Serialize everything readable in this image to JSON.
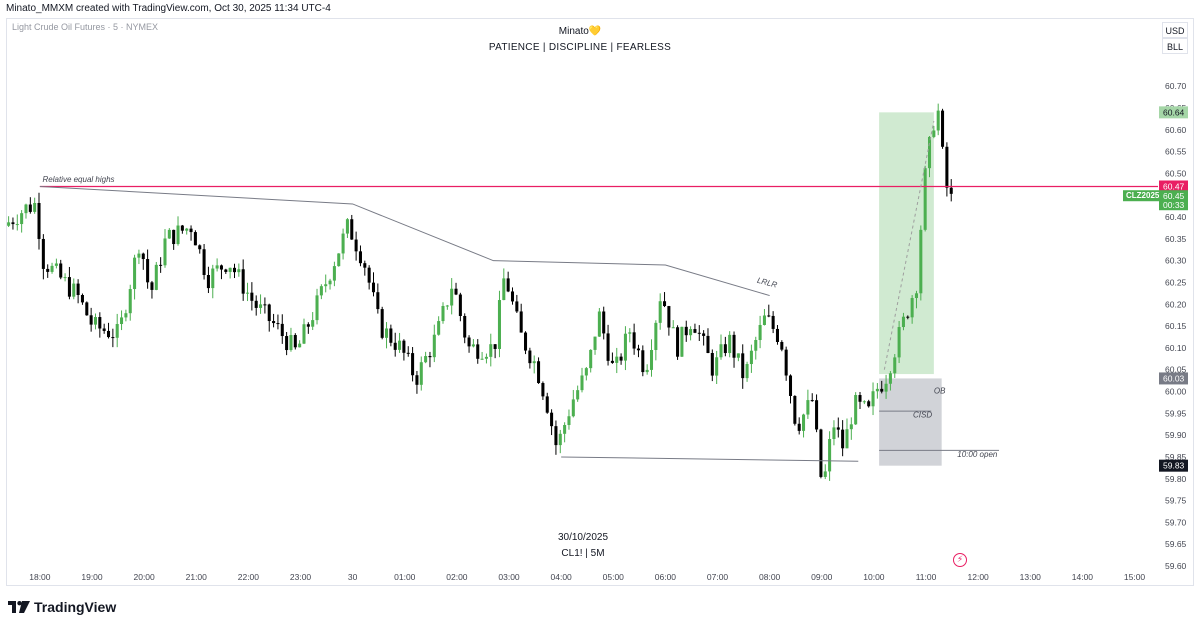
{
  "header": {
    "attribution": "Minato_MMXM created with TradingView.com, Oct 30, 2025 11:34 UTC-4",
    "symbol_info": "Light Crude Oil Futures · 5 · NYMEX"
  },
  "watermark": {
    "title": "Minato💛",
    "subtitle": "PATIENCE  |  DISCIPLINE  |  FEARLESS",
    "date": "30/10/2025",
    "timeframe": "CL1!  |  5M"
  },
  "currency_buttons": {
    "usd": "USD",
    "unit": "BLL"
  },
  "branding": {
    "name": "TradingView"
  },
  "colors": {
    "up": "#4caf50",
    "down": "#000000",
    "liquidity_line": "#e91e63",
    "target_zone": "#c8e6c9",
    "ob_zone": "#b2b5be",
    "trendline": "#787b86"
  },
  "chart_data": {
    "type": "candlestick",
    "symbol": "CLZ2025",
    "title": "Light Crude Oil Futures · 5 · NYMEX",
    "ylim": [
      59.6,
      60.76
    ],
    "y_ticks": [
      60.7,
      60.65,
      60.6,
      60.55,
      60.5,
      60.45,
      60.4,
      60.35,
      60.3,
      60.25,
      60.2,
      60.15,
      60.1,
      60.05,
      60.0,
      59.95,
      59.9,
      59.85,
      59.8,
      59.75,
      59.7,
      59.65,
      59.6
    ],
    "x_ticks": [
      "18:00",
      "19:00",
      "20:00",
      "21:00",
      "22:00",
      "23:00",
      "30",
      "01:00",
      "02:00",
      "03:00",
      "04:00",
      "05:00",
      "06:00",
      "07:00",
      "08:00",
      "09:00",
      "10:00",
      "11:00",
      "12:00",
      "13:00",
      "14:00",
      "15:00"
    ],
    "x_tick_hours": [
      0,
      1,
      2,
      3,
      4,
      5,
      6,
      7,
      8,
      9,
      10,
      11,
      12,
      13,
      14,
      15,
      16,
      17,
      18,
      19,
      20,
      21
    ],
    "x_range_hours": [
      -0.65,
      21.45
    ],
    "candle_hours": [
      -0.6,
      17.55
    ],
    "anchors": [
      [
        -0.6,
        60.38
      ],
      [
        -0.2,
        60.42
      ],
      [
        0,
        60.43
      ],
      [
        0.15,
        60.3
      ],
      [
        0.8,
        60.22
      ],
      [
        1.1,
        60.15
      ],
      [
        1.6,
        60.13
      ],
      [
        2.0,
        60.35
      ],
      [
        2.2,
        60.22
      ],
      [
        2.5,
        60.35
      ],
      [
        3.0,
        60.38
      ],
      [
        3.3,
        60.26
      ],
      [
        3.7,
        60.3
      ],
      [
        4.2,
        60.2
      ],
      [
        4.6,
        60.15
      ],
      [
        5.0,
        60.09
      ],
      [
        5.4,
        60.2
      ],
      [
        5.6,
        60.26
      ],
      [
        6.0,
        60.38
      ],
      [
        6.3,
        60.3
      ],
      [
        6.6,
        60.15
      ],
      [
        7.0,
        60.1
      ],
      [
        7.3,
        60.03
      ],
      [
        7.7,
        60.13
      ],
      [
        8.0,
        60.25
      ],
      [
        8.3,
        60.1
      ],
      [
        8.8,
        60.1
      ],
      [
        9.0,
        60.27
      ],
      [
        9.3,
        60.13
      ],
      [
        9.6,
        60.06
      ],
      [
        9.8,
        59.98
      ],
      [
        10.0,
        59.87
      ],
      [
        10.3,
        59.98
      ],
      [
        10.6,
        60.05
      ],
      [
        10.8,
        60.18
      ],
      [
        11.1,
        60.04
      ],
      [
        11.4,
        60.14
      ],
      [
        11.7,
        60.05
      ],
      [
        12.0,
        60.23
      ],
      [
        12.3,
        60.1
      ],
      [
        12.6,
        60.17
      ],
      [
        13.0,
        60.05
      ],
      [
        13.3,
        60.12
      ],
      [
        13.6,
        60.03
      ],
      [
        13.8,
        60.11
      ],
      [
        14.0,
        60.17
      ],
      [
        14.3,
        60.12
      ],
      [
        14.6,
        59.92
      ],
      [
        14.9,
        59.98
      ],
      [
        15.1,
        59.77
      ],
      [
        15.3,
        59.93
      ],
      [
        15.5,
        59.87
      ],
      [
        15.7,
        59.97
      ],
      [
        16.0,
        59.95
      ],
      [
        16.1,
        60.0
      ],
      [
        16.3,
        60.03
      ],
      [
        16.6,
        60.14
      ],
      [
        16.9,
        60.25
      ],
      [
        17.05,
        60.48
      ],
      [
        17.2,
        60.6
      ],
      [
        17.3,
        60.66
      ],
      [
        17.45,
        60.48
      ],
      [
        17.55,
        60.44
      ]
    ],
    "last_price": 60.45,
    "countdown": "00:33",
    "price_labels": [
      {
        "text": "60.64",
        "value": 60.64,
        "kind": "target"
      },
      {
        "text": "60.47",
        "value": 60.47,
        "kind": "liquidity"
      },
      {
        "text": "60.03",
        "value": 60.03,
        "kind": "ob"
      },
      {
        "text": "59.83",
        "value": 59.83,
        "kind": "low"
      }
    ],
    "levels": [
      {
        "name": "relative-equal-highs",
        "value": 60.47,
        "x_start": 0,
        "x_end": 21.45
      }
    ],
    "trendlines": [
      {
        "name": "descending-highs",
        "points": [
          [
            0,
            60.47
          ],
          [
            6.0,
            60.43
          ],
          [
            8.7,
            60.3
          ],
          [
            12.0,
            60.29
          ],
          [
            14.0,
            60.22
          ]
        ]
      },
      {
        "name": "equal-lows",
        "points": [
          [
            10.0,
            59.85
          ],
          [
            15.7,
            59.84
          ]
        ]
      }
    ],
    "zones": [
      {
        "name": "target-zone",
        "x0": 16.1,
        "x1": 17.15,
        "y0": 60.04,
        "y1": 60.64
      },
      {
        "name": "ob-zone",
        "x0": 16.1,
        "x1": 17.3,
        "y0": 59.83,
        "y1": 60.03
      }
    ],
    "rays": [
      {
        "name": "cisd-line",
        "x0": 16.1,
        "x1": 17.1,
        "value": 59.955
      },
      {
        "name": "ten-open-line",
        "x0": 16.1,
        "x1": 18.4,
        "value": 59.865
      }
    ],
    "annotations": [
      {
        "name": "relative-equal-highs-label",
        "text": "Relative equal highs",
        "x": 0.05,
        "value": 60.48
      },
      {
        "name": "lrlr-label",
        "text": "LRLR",
        "x": 13.75,
        "value": 60.25
      },
      {
        "name": "ob-label",
        "text": "OB",
        "x": 17.15,
        "value": 59.995
      },
      {
        "name": "cisd-label",
        "text": "CISD",
        "x": 16.75,
        "value": 59.94
      },
      {
        "name": "ten-open-label",
        "text": "10:00 open",
        "x": 17.6,
        "value": 59.85
      }
    ]
  }
}
